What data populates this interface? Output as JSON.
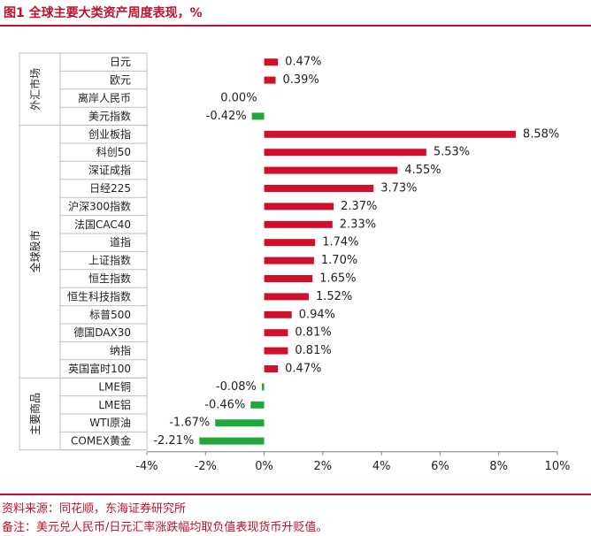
{
  "header": {
    "title": "图1  全球主要大类资产周度表现，%"
  },
  "footer": {
    "source": "资料来源：同花顺，东海证券研究所",
    "note": "备注：美元兑人民币/日元汇率涨跌幅均取负值表现货币升贬值。"
  },
  "colors": {
    "positive": "#d0102b",
    "negative": "#22a83a",
    "accent": "#c0102a"
  },
  "chart_data": {
    "type": "bar",
    "orientation": "horizontal",
    "title": "全球主要大类资产周度表现，%",
    "xlim": [
      -4,
      10
    ],
    "xticks": [
      "-4%",
      "-2%",
      "0%",
      "2%",
      "4%",
      "6%",
      "8%",
      "10%"
    ],
    "grid": false,
    "groups": [
      {
        "name": "外汇市场",
        "items": [
          {
            "label": "日元",
            "value": 0.47,
            "text": "0.47%"
          },
          {
            "label": "欧元",
            "value": 0.39,
            "text": "0.39%"
          },
          {
            "label": "离岸人民币",
            "value": 0.0,
            "text": "0.00%"
          },
          {
            "label": "美元指数",
            "value": -0.42,
            "text": "-0.42%"
          }
        ]
      },
      {
        "name": "全球股市",
        "items": [
          {
            "label": "创业板指",
            "value": 8.58,
            "text": "8.58%"
          },
          {
            "label": "科创50",
            "value": 5.53,
            "text": "5.53%"
          },
          {
            "label": "深证成指",
            "value": 4.55,
            "text": "4.55%"
          },
          {
            "label": "日经225",
            "value": 3.73,
            "text": "3.73%"
          },
          {
            "label": "沪深300指数",
            "value": 2.37,
            "text": "2.37%"
          },
          {
            "label": "法国CAC40",
            "value": 2.33,
            "text": "2.33%"
          },
          {
            "label": "道指",
            "value": 1.74,
            "text": "1.74%"
          },
          {
            "label": "上证指数",
            "value": 1.7,
            "text": "1.70%"
          },
          {
            "label": "恒生指数",
            "value": 1.65,
            "text": "1.65%"
          },
          {
            "label": "恒生科技指数",
            "value": 1.52,
            "text": "1.52%"
          },
          {
            "label": "标普500",
            "value": 0.94,
            "text": "0.94%"
          },
          {
            "label": "德国DAX30",
            "value": 0.81,
            "text": "0.81%"
          },
          {
            "label": "纳指",
            "value": 0.81,
            "text": "0.81%"
          },
          {
            "label": "英国富时100",
            "value": 0.47,
            "text": "0.47%"
          }
        ]
      },
      {
        "name": "主要商品",
        "items": [
          {
            "label": "LME铜",
            "value": -0.08,
            "text": "-0.08%"
          },
          {
            "label": "LME铝",
            "value": -0.46,
            "text": "-0.46%"
          },
          {
            "label": "WTI原油",
            "value": -1.67,
            "text": "-1.67%"
          },
          {
            "label": "COMEX黄金",
            "value": -2.21,
            "text": "-2.21%"
          }
        ]
      }
    ]
  }
}
